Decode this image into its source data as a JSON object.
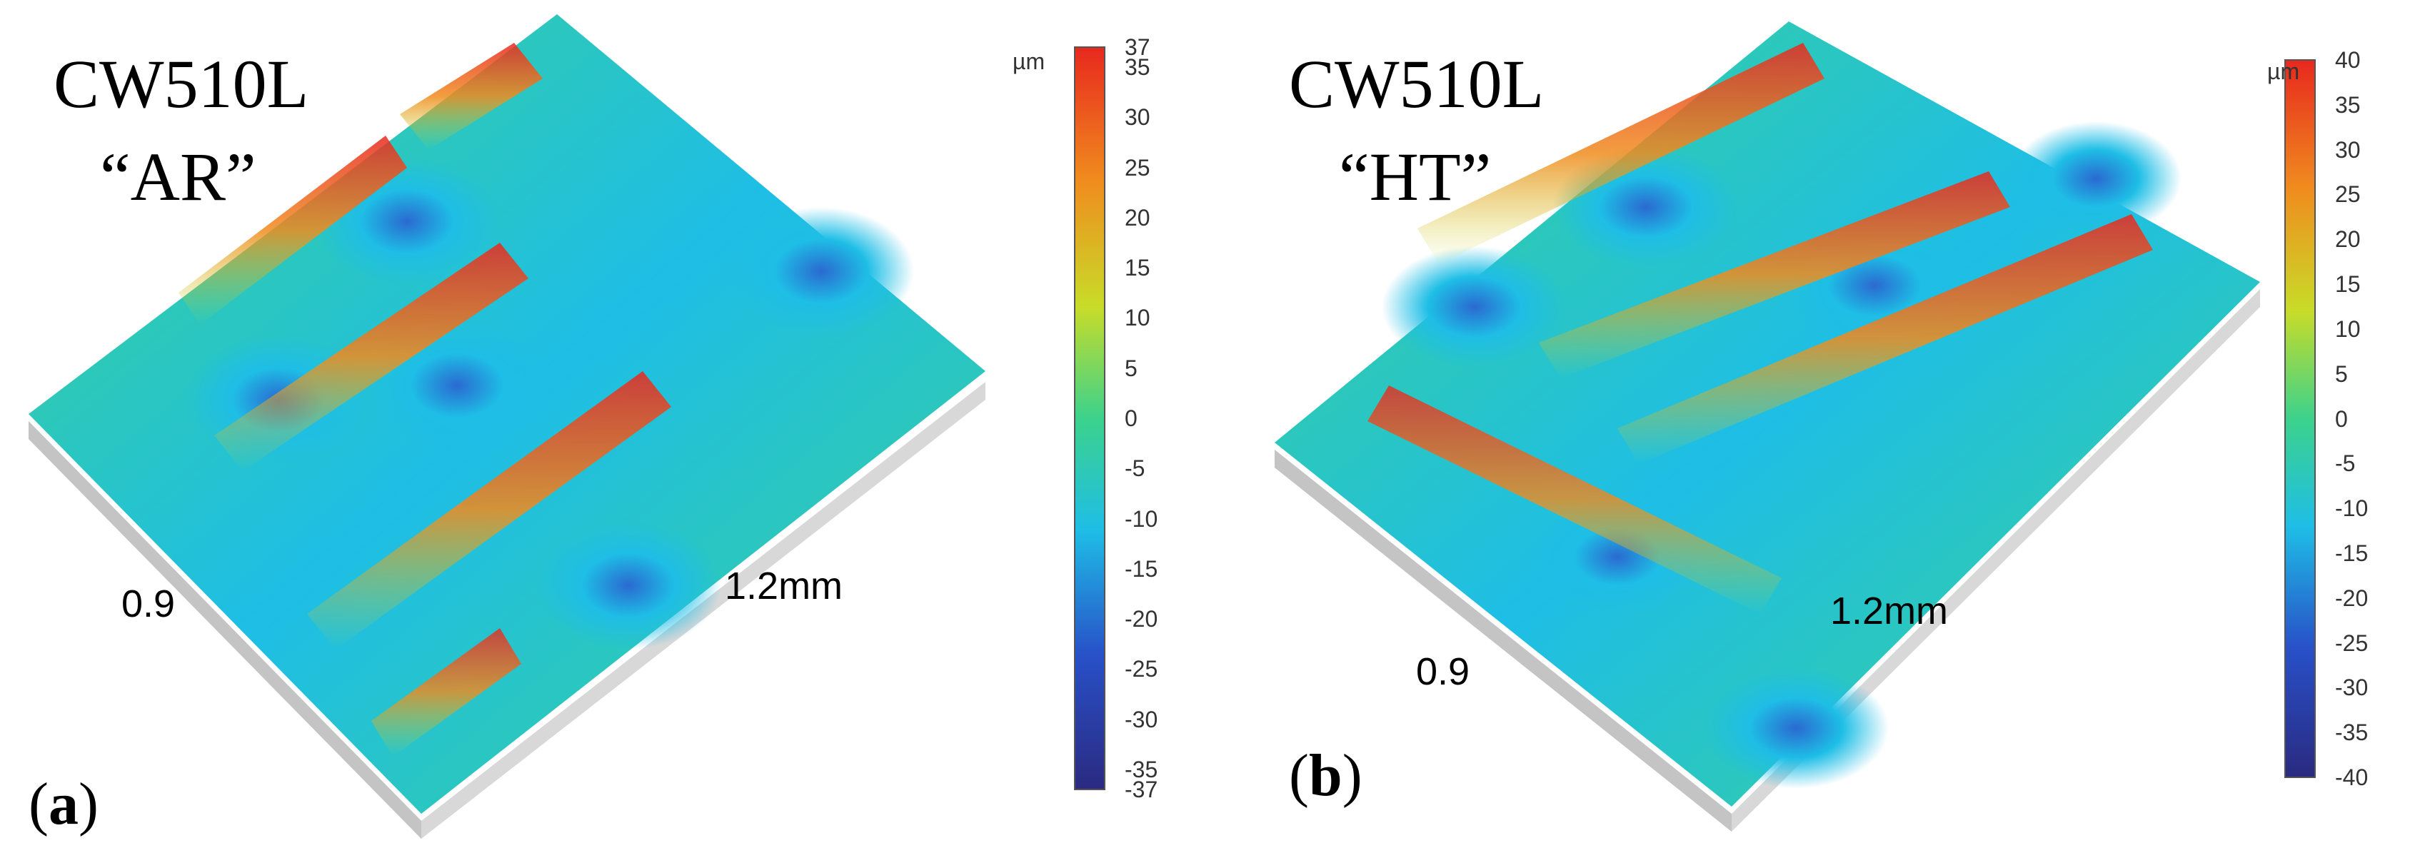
{
  "colors": {
    "scale_top": "#e8281e",
    "scale_upper": "#f08c1e",
    "scale_mid_high": "#c8dc28",
    "scale_mid": "#3cd28c",
    "scale_mid_low": "#1ebee6",
    "scale_low": "#2850c8",
    "scale_bottom": "#2a2a80",
    "base": "#d8d8d8"
  },
  "panels": [
    {
      "letter": "a",
      "title_line1": "CW510L",
      "title_line2": "“AR”",
      "axis_short": "0.9",
      "axis_long": "1.2mm",
      "colorbar": {
        "unit": "µm",
        "max": 37,
        "min": -37,
        "ticks": [
          "37",
          "35",
          "30",
          "25",
          "20",
          "15",
          "10",
          "5",
          "0",
          "-5",
          "-10",
          "-15",
          "-20",
          "-25",
          "-30",
          "-35",
          "-37"
        ]
      }
    },
    {
      "letter": "b",
      "title_line1": "CW510L",
      "title_line2": "“HT”",
      "axis_short": "0.9",
      "axis_long": "1.2mm",
      "colorbar": {
        "unit": "µm",
        "max": 40,
        "min": -40,
        "ticks": [
          "40",
          "35",
          "30",
          "25",
          "20",
          "15",
          "10",
          "5",
          "0",
          "-5",
          "-10",
          "-15",
          "-20",
          "-25",
          "-30",
          "-35",
          "-40"
        ]
      }
    }
  ]
}
